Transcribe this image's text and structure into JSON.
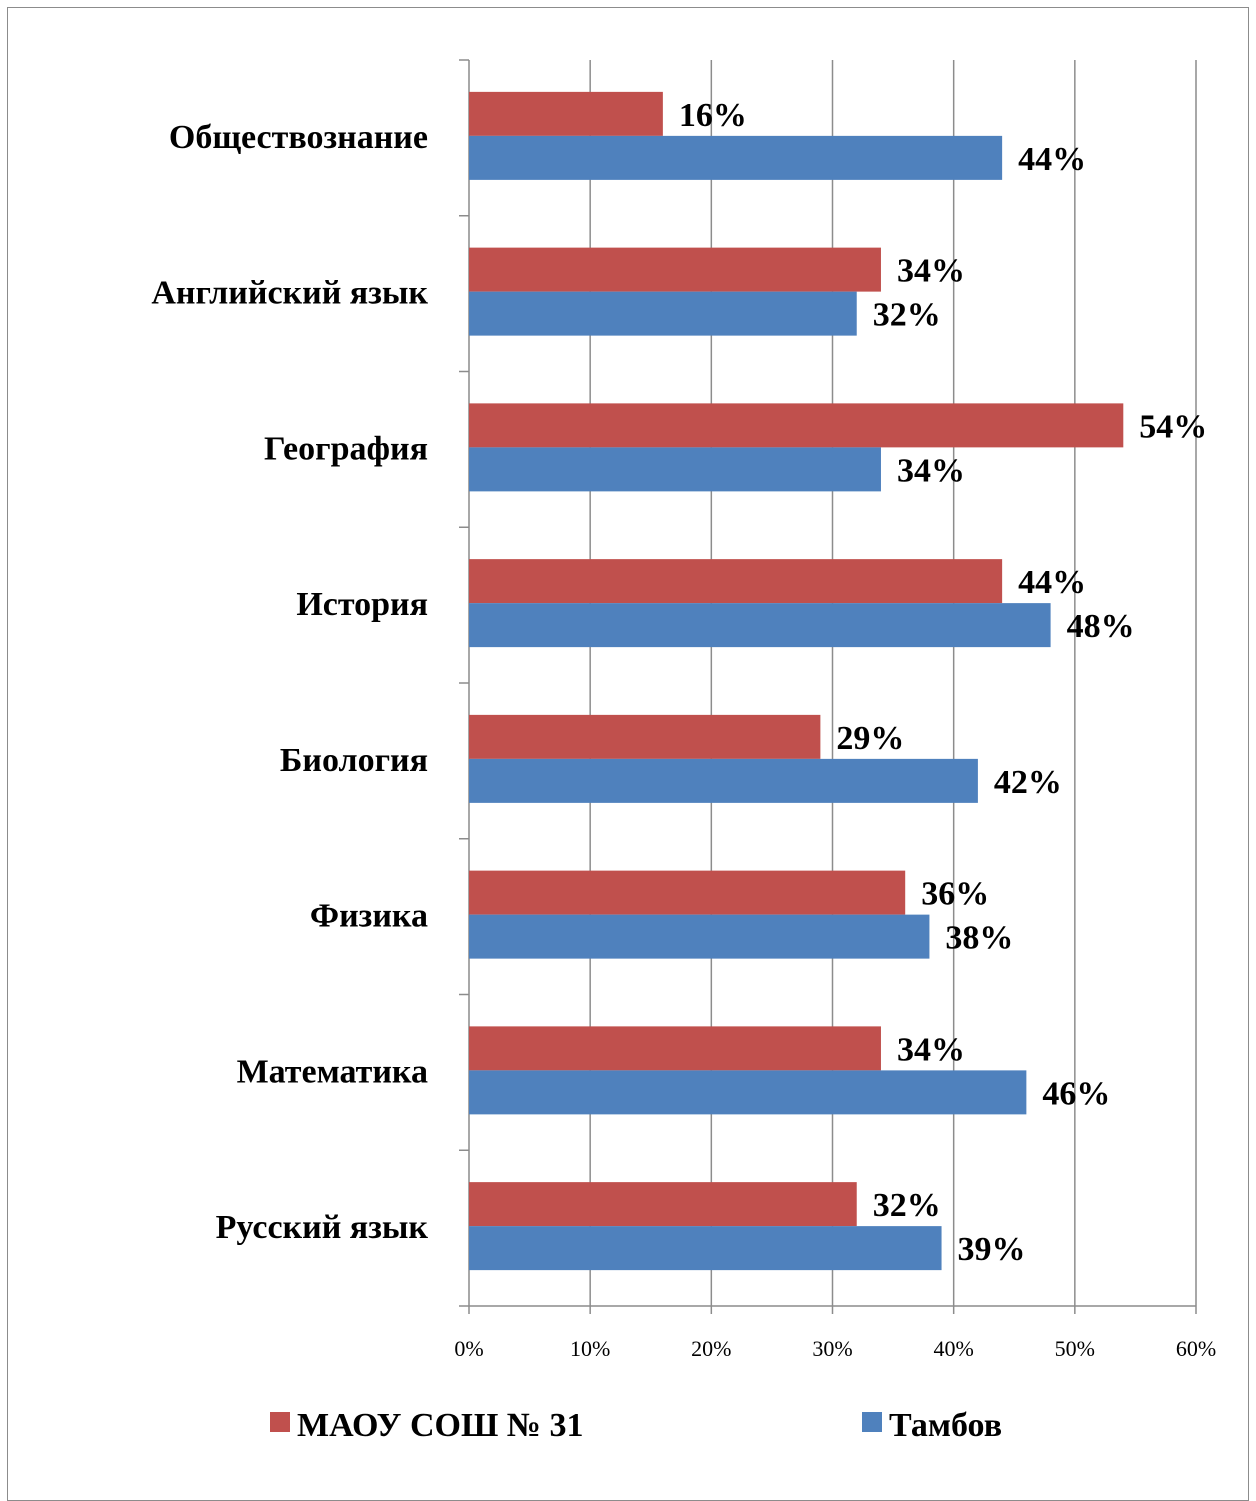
{
  "chart_data": {
    "type": "bar",
    "orientation": "horizontal",
    "categories": [
      "Обществознание",
      "Английский язык",
      "География",
      "История",
      "Биология",
      "Физика",
      "Математика",
      "Русский язык"
    ],
    "series": [
      {
        "name": "МАОУ СОШ № 31",
        "color": "#c0504d",
        "values": [
          16,
          34,
          54,
          44,
          29,
          36,
          34,
          32
        ],
        "labels": [
          "16%",
          "34%",
          "54%",
          "44%",
          "29%",
          "36%",
          "34%",
          "32%"
        ]
      },
      {
        "name": "Тамбов",
        "color": "#4f81bd",
        "values": [
          44,
          32,
          34,
          48,
          42,
          38,
          46,
          39
        ],
        "labels": [
          "44%",
          "32%",
          "34%",
          "48%",
          "42%",
          "38%",
          "46%",
          "39%"
        ]
      }
    ],
    "xlim": [
      0,
      60
    ],
    "xticks": [
      0,
      10,
      20,
      30,
      40,
      50,
      60
    ],
    "xtick_labels": [
      "0%",
      "10%",
      "20%",
      "30%",
      "40%",
      "50%",
      "60%"
    ],
    "grid": true,
    "legend_position": "bottom"
  }
}
